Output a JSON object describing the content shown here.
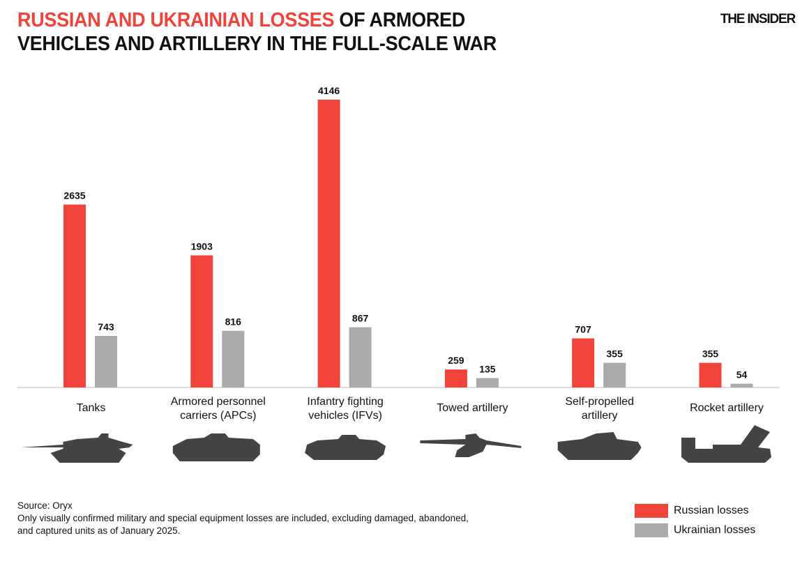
{
  "header": {
    "title_highlight": "RUSSIAN AND UKRAINIAN LOSSES",
    "title_rest_line1": " OF ARMORED",
    "title_line2": "VEHICLES AND ARTILLERY IN THE FULL-SCALE WAR",
    "logo": "THE INSIDER"
  },
  "chart_data": {
    "type": "bar",
    "categories": [
      [
        "Tanks"
      ],
      [
        "Armored personnel",
        "carriers (APCs)"
      ],
      [
        "Infantry fighting",
        "vehicles (IFVs)"
      ],
      [
        "Towed artillery"
      ],
      [
        "Self-propelled",
        "artillery"
      ],
      [
        "Rocket artillery"
      ]
    ],
    "icons": [
      "tank-icon",
      "apc-icon",
      "ifv-icon",
      "towed-artillery-icon",
      "self-propelled-artillery-icon",
      "rocket-artillery-icon"
    ],
    "series": [
      {
        "name": "Russian losses",
        "color": "#f0443a",
        "values": [
          2635,
          1903,
          4146,
          259,
          707,
          355
        ]
      },
      {
        "name": "Ukrainian losses",
        "color": "#aaaaaa",
        "values": [
          743,
          816,
          867,
          135,
          355,
          54
        ]
      }
    ],
    "ylim": [
      0,
      4146
    ],
    "grid": false,
    "legend_position": "bottom-right"
  },
  "footer": {
    "source": "Source: Oryx",
    "note_line1": "Only visually confirmed military and special equipment losses are included, excluding damaged, abandoned,",
    "note_line2": "and captured units as of January 2025."
  }
}
